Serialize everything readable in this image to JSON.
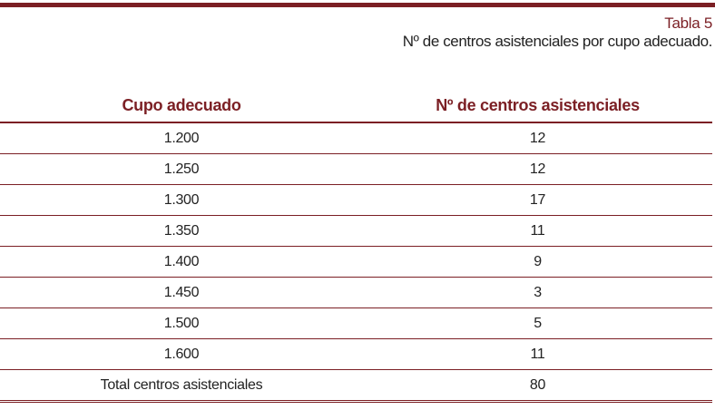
{
  "caption": {
    "number": "Tabla 5",
    "title": "Nº de centros asistenciales por cupo adecuado."
  },
  "table": {
    "headers": [
      "Cupo adecuado",
      "Nº de centros asistenciales"
    ],
    "rows": [
      [
        "1.200",
        "12"
      ],
      [
        "1.250",
        "12"
      ],
      [
        "1.300",
        "17"
      ],
      [
        "1.350",
        "11"
      ],
      [
        "1.400",
        "9"
      ],
      [
        "1.450",
        "3"
      ],
      [
        "1.500",
        "5"
      ],
      [
        "1.600",
        "11"
      ]
    ],
    "total": [
      "Total centros asistenciales",
      "80"
    ]
  }
}
